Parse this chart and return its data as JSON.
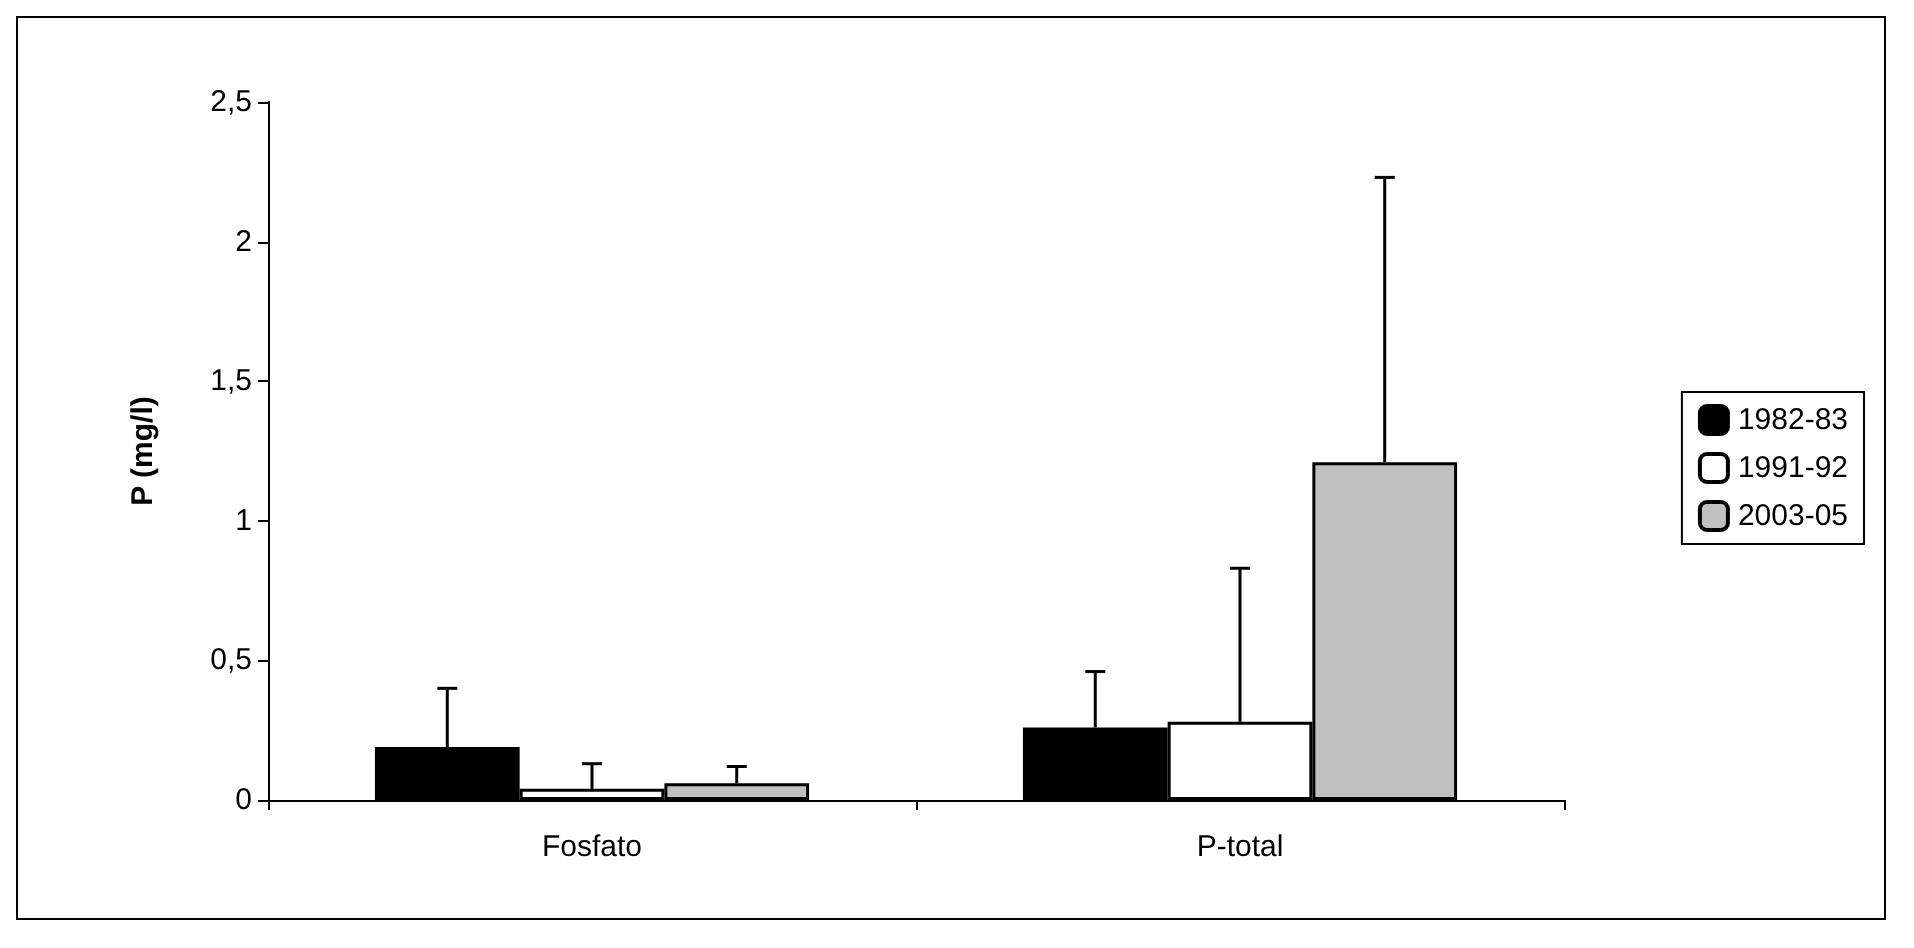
{
  "chart_data": {
    "type": "bar",
    "ylabel": "P (mg/l)",
    "categories": [
      "Fosfato",
      "P-total"
    ],
    "series": [
      {
        "name": "1982-83",
        "color": "#000000",
        "values": [
          0.19,
          0.26
        ],
        "errors": [
          [
            0.19,
            0.4
          ],
          [
            0.26,
            0.46
          ]
        ]
      },
      {
        "name": "1991-92",
        "color": "#ffffff",
        "values": [
          0.04,
          0.28
        ],
        "errors": [
          [
            0.04,
            0.13
          ],
          [
            0.28,
            0.83
          ]
        ]
      },
      {
        "name": "2003-05",
        "color": "#c0c0c0",
        "values": [
          0.06,
          1.21
        ],
        "errors": [
          [
            0.06,
            0.12
          ],
          [
            1.21,
            2.23
          ]
        ]
      }
    ],
    "ylim": [
      0,
      2.5
    ],
    "yticks": [
      0,
      {
        "value": 0.5,
        "label": "0,5"
      },
      1,
      {
        "value": 1.5,
        "label": "1,5"
      },
      2,
      {
        "value": 2.5,
        "label": "2,5"
      }
    ],
    "grid": false,
    "legend": "right"
  }
}
